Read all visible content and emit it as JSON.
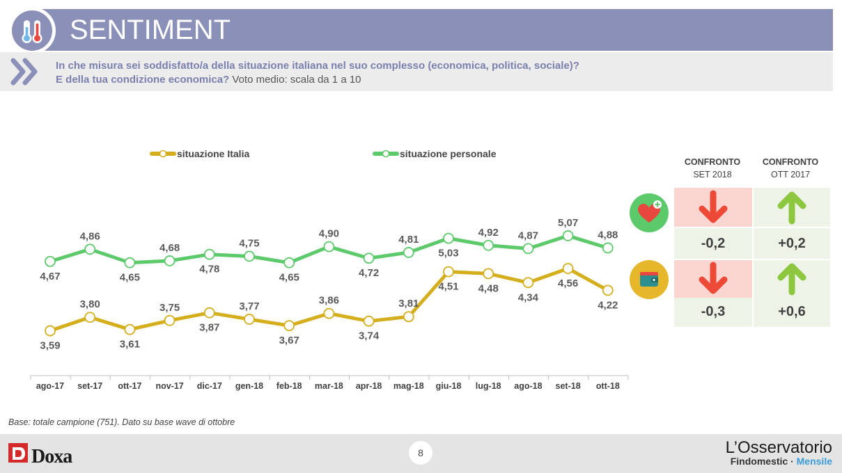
{
  "header": {
    "title": "SENTIMENT",
    "icon": "thermometer-icon",
    "question_line1": "In che misura sei soddisfatto/a della situazione italiana nel suo complesso (economica, politica, sociale)?",
    "question_line2_bold": "E della tua condizione economica?",
    "question_line2_plain": " Voto medio: scala da 1 a 10"
  },
  "colors": {
    "header_bar": "#8b90b8",
    "italia": "#d4ae1c",
    "personale": "#5cc96a",
    "down_arrow": "#ec4a37",
    "up_arrow": "#8dc63f",
    "down_cell": "#fbd5cf",
    "up_cell": "#eef3e7"
  },
  "chart_data": {
    "type": "line",
    "categories": [
      "ago-17",
      "set-17",
      "ott-17",
      "nov-17",
      "dic-17",
      "gen-18",
      "feb-18",
      "mar-18",
      "apr-18",
      "mag-18",
      "giu-18",
      "lug-18",
      "ago-18",
      "set-18",
      "ott-18"
    ],
    "series": [
      {
        "name": "situazione Italia",
        "values": [
          3.59,
          3.8,
          3.61,
          3.75,
          3.87,
          3.77,
          3.67,
          3.86,
          3.74,
          3.81,
          4.51,
          4.48,
          4.34,
          4.56,
          4.22
        ],
        "labels": [
          "3,59",
          "3,80",
          "3,61",
          "3,75",
          "3,87",
          "3,77",
          "3,67",
          "3,86",
          "3,74",
          "3,81",
          "4,51",
          "4,48",
          "4,34",
          "4,56",
          "4,22"
        ]
      },
      {
        "name": "situazione personale",
        "values": [
          4.67,
          4.86,
          4.65,
          4.68,
          4.78,
          4.75,
          4.65,
          4.9,
          4.72,
          4.81,
          5.03,
          4.92,
          4.87,
          5.07,
          4.88
        ],
        "labels": [
          "4,67",
          "4,86",
          "4,65",
          "4,68",
          "4,78",
          "4,75",
          "4,65",
          "4,90",
          "4,72",
          "4,81",
          "5,03",
          "4,92",
          "4,87",
          "5,07",
          "4,88"
        ]
      }
    ],
    "legend_position": "top",
    "grid": false,
    "axis": "x-only",
    "ylim": [
      3.0,
      5.6
    ]
  },
  "comparison": {
    "col1_title": "CONFRONTO",
    "col1_sub": "SET 2018",
    "col2_title": "CONFRONTO",
    "col2_sub": "OTT 2017",
    "rows": [
      {
        "name": "personale",
        "icon": "heart-plus-icon",
        "col1_value": "-0,2",
        "col1_direction": "down",
        "col2_value": "+0,2",
        "col2_direction": "up"
      },
      {
        "name": "italia",
        "icon": "wallet-icon",
        "col1_value": "-0,3",
        "col1_direction": "down",
        "col2_value": "+0,6",
        "col2_direction": "up"
      }
    ]
  },
  "footnote": "Base: totale campione (751). Dato su base wave di ottobre",
  "footer": {
    "page": "8",
    "doxa_logo": "Doxa",
    "brand_line1": "L’Osservatorio",
    "brand_line2_a": "Findomestic · ",
    "brand_line2_b": "Mensile"
  }
}
